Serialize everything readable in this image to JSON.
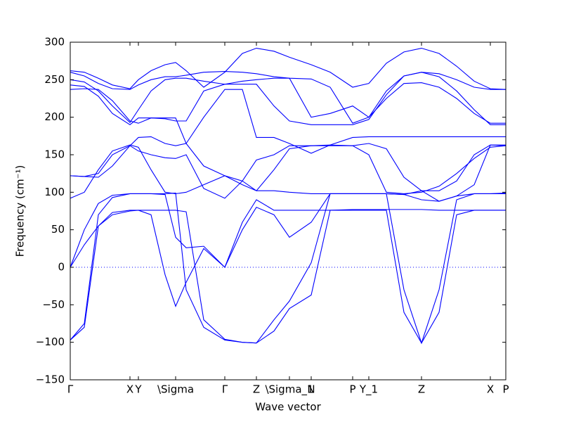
{
  "chart_data": {
    "type": "line",
    "xlabel": "Wave vector",
    "ylabel": "Frequency (cm⁻¹)",
    "xlim": [
      0,
      6.2
    ],
    "ylim": [
      -150,
      300
    ],
    "yticks": [
      {
        "value": -150,
        "label": "−150"
      },
      {
        "value": -100,
        "label": "−100"
      },
      {
        "value": -50,
        "label": "−50"
      },
      0,
      50,
      100,
      150,
      200,
      250,
      300
    ],
    "xticks": [
      {
        "value": 0,
        "label": "Γ"
      },
      {
        "value": 0.85,
        "label": "X"
      },
      {
        "value": 0.97,
        "label": "Y"
      },
      {
        "value": 1.5,
        "label": "\\Sigma"
      },
      {
        "value": 2.2,
        "label": "Γ"
      },
      {
        "value": 2.65,
        "label": "Z"
      },
      {
        "value": 3.12,
        "label": "\\Sigma_1"
      },
      {
        "value": 3.43,
        "label": "N"
      },
      {
        "value": 4.02,
        "label": "P"
      },
      {
        "value": 4.25,
        "label": "Y_1"
      },
      {
        "value": 5.0,
        "label": "Z"
      },
      {
        "value": 5.98,
        "label": "X"
      },
      {
        "value": 6.2,
        "label": "P"
      }
    ],
    "x": [
      0,
      0.2,
      0.4,
      0.6,
      0.85,
      0.97,
      1.15,
      1.35,
      1.5,
      1.65,
      1.9,
      2.2,
      2.45,
      2.65,
      2.9,
      3.12,
      3.43,
      3.7,
      4.02,
      4.25,
      4.5,
      4.75,
      5.0,
      5.25,
      5.5,
      5.75,
      5.98,
      6.2
    ],
    "series": [
      {
        "color": "#0000ff",
        "values": [
          -97,
          -80,
          55,
          73,
          76,
          76,
          76,
          76,
          76,
          74,
          -70,
          -96,
          -100,
          -101,
          -85,
          -55,
          -37,
          76,
          76,
          76,
          76,
          -60,
          -101,
          -60,
          70,
          76,
          76,
          76
        ]
      },
      {
        "color": "#0000ff",
        "values": [
          -97,
          -75,
          70,
          93,
          98,
          98,
          98,
          98,
          99,
          -30,
          -80,
          -97,
          -100,
          -101,
          -70,
          -45,
          6,
          98,
          98,
          98,
          98,
          -30,
          -101,
          -30,
          90,
          98,
          98,
          99
        ]
      },
      {
        "color": "#0000ff",
        "values": [
          0,
          30,
          55,
          70,
          75,
          76,
          70,
          -10,
          -52,
          -20,
          25,
          0,
          60,
          90,
          76,
          76,
          76,
          76,
          77,
          77,
          77,
          77,
          77,
          76,
          76,
          76,
          76,
          76
        ]
      },
      {
        "color": "#0000ff",
        "values": [
          0,
          50,
          85,
          96,
          98,
          98,
          98,
          97,
          40,
          26,
          28,
          0,
          50,
          80,
          70,
          40,
          60,
          98,
          98,
          98,
          98,
          97,
          90,
          88,
          95,
          98,
          98,
          98
        ]
      },
      {
        "color": "#0000ff",
        "values": [
          92,
          100,
          130,
          155,
          163,
          160,
          130,
          100,
          98,
          100,
          110,
          122,
          115,
          102,
          102,
          100,
          98,
          98,
          98,
          98,
          98,
          97,
          102,
          88,
          95,
          110,
          163,
          162
        ]
      },
      {
        "color": "#0000ff",
        "values": [
          122,
          121,
          125,
          150,
          162,
          155,
          150,
          146,
          145,
          150,
          105,
          92,
          115,
          143,
          150,
          162,
          162,
          163,
          162,
          150,
          100,
          98,
          100,
          108,
          125,
          145,
          160,
          162
        ]
      },
      {
        "color": "#0000ff",
        "values": [
          122,
          121,
          120,
          135,
          162,
          173,
          174,
          165,
          162,
          165,
          135,
          122,
          110,
          102,
          130,
          158,
          162,
          162,
          162,
          165,
          158,
          120,
          102,
          102,
          115,
          150,
          163,
          163
        ]
      },
      {
        "color": "#0000ff",
        "values": [
          237,
          238,
          237,
          222,
          195,
          192,
          199,
          199,
          199,
          165,
          200,
          237,
          237,
          173,
          173,
          165,
          152,
          163,
          173,
          174,
          174,
          174,
          174,
          174,
          174,
          174,
          174,
          174
        ]
      },
      {
        "color": "#0000ff",
        "values": [
          243,
          241,
          228,
          205,
          190,
          199,
          199,
          198,
          195,
          195,
          235,
          244,
          244,
          244,
          215,
          195,
          190,
          190,
          190,
          197,
          230,
          255,
          260,
          254,
          235,
          210,
          190,
          190
        ]
      },
      {
        "color": "#0000ff",
        "values": [
          250,
          247,
          235,
          215,
          193,
          210,
          235,
          250,
          252,
          252,
          248,
          244,
          248,
          250,
          252,
          252,
          200,
          205,
          215,
          200,
          225,
          245,
          246,
          240,
          225,
          205,
          192,
          192
        ]
      },
      {
        "color": "#0000ff",
        "values": [
          260,
          255,
          245,
          238,
          237,
          243,
          250,
          254,
          254,
          256,
          260,
          261,
          260,
          258,
          254,
          252,
          251,
          240,
          192,
          200,
          235,
          255,
          260,
          258,
          250,
          240,
          237,
          237
        ]
      },
      {
        "color": "#0000ff",
        "values": [
          262,
          260,
          252,
          243,
          238,
          250,
          262,
          270,
          273,
          262,
          240,
          260,
          285,
          292,
          288,
          280,
          270,
          260,
          240,
          245,
          272,
          287,
          292,
          285,
          268,
          248,
          238,
          237
        ]
      }
    ]
  }
}
